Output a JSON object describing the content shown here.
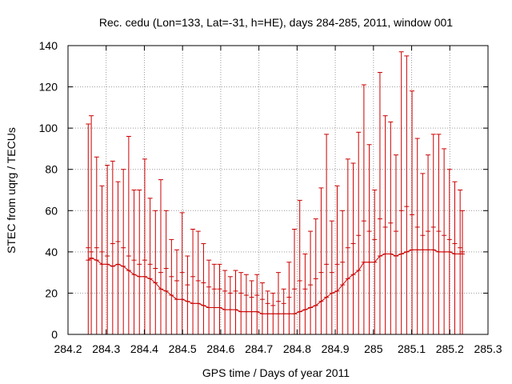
{
  "chart_data": {
    "type": "errorbar",
    "title": "Rec. cedu (Lon=133, Lat=-31, h=HE), days 284-285, 2011, window 001",
    "xlabel": "GPS time / Days of year 2011",
    "ylabel": "STEC from uqrg / TECUs",
    "xlim": [
      284.2,
      285.3
    ],
    "ylim": [
      0,
      140
    ],
    "xticks": [
      284.2,
      284.3,
      284.4,
      284.5,
      284.6,
      284.7,
      284.8,
      284.9,
      285,
      285.1,
      285.2,
      285.3
    ],
    "xtick_labels": [
      "284.2",
      "284.3",
      "284.4",
      "284.5",
      "284.6",
      "284.7",
      "284.8",
      "284.9",
      "285",
      "285.1",
      "285.2",
      "285.3"
    ],
    "yticks": [
      0,
      20,
      40,
      60,
      80,
      100,
      120,
      140
    ],
    "ytick_labels": [
      "0",
      "20",
      "40",
      "60",
      "80",
      "100",
      "120",
      "140"
    ],
    "grid": true,
    "color": "#cc0000",
    "series": [
      {
        "name": "STEC",
        "x": [
          284.253,
          284.261,
          284.275,
          284.289,
          284.303,
          284.317,
          284.331,
          284.345,
          284.359,
          284.373,
          284.387,
          284.401,
          284.415,
          284.429,
          284.443,
          284.457,
          284.471,
          284.485,
          284.499,
          284.513,
          284.527,
          284.541,
          284.555,
          284.569,
          284.583,
          284.597,
          284.611,
          284.625,
          284.639,
          284.653,
          284.667,
          284.681,
          284.695,
          284.709,
          284.723,
          284.737,
          284.751,
          284.765,
          284.779,
          284.793,
          284.807,
          284.821,
          284.835,
          284.849,
          284.863,
          284.877,
          284.891,
          284.905,
          284.919,
          284.933,
          284.947,
          284.961,
          284.975,
          284.989,
          285.003,
          285.017,
          285.031,
          285.045,
          285.059,
          285.073,
          285.087,
          285.101,
          285.115,
          285.129,
          285.143,
          285.157,
          285.171,
          285.185,
          285.199,
          285.213,
          285.227,
          285.233
        ],
        "upper": [
          102,
          106,
          86,
          72,
          82,
          84,
          74,
          80,
          96,
          70,
          70,
          85,
          66,
          60,
          75,
          60,
          46,
          41,
          59,
          38,
          51,
          50,
          44,
          36,
          34,
          34,
          31,
          28,
          31,
          30,
          29,
          26,
          29,
          25,
          21,
          20,
          30,
          22,
          35,
          51,
          65,
          39,
          50,
          56,
          71,
          97,
          55,
          72,
          60,
          85,
          83,
          98,
          121,
          92,
          70,
          127,
          106,
          103,
          87,
          137,
          135,
          118,
          95,
          78,
          87,
          97,
          97,
          90,
          80,
          74,
          70,
          60
        ],
        "middle": [
          42,
          40,
          42,
          40,
          38,
          44,
          45,
          42,
          38,
          36,
          34,
          36,
          34,
          32,
          30,
          32,
          28,
          26,
          30,
          24,
          28,
          26,
          25,
          23,
          22,
          22,
          21,
          20,
          21,
          20,
          19,
          18,
          19,
          17,
          15,
          14,
          16,
          15,
          18,
          22,
          26,
          22,
          24,
          27,
          30,
          34,
          30,
          34,
          35,
          42,
          44,
          48,
          55,
          50,
          46,
          56,
          52,
          54,
          50,
          60,
          62,
          58,
          52,
          48,
          50,
          52,
          50,
          48,
          46,
          44,
          42,
          40
        ],
        "lower": [
          36,
          37,
          36,
          34,
          34,
          33,
          34,
          33,
          31,
          29,
          28,
          28,
          27,
          25,
          22,
          21,
          19,
          17,
          17,
          16,
          15,
          15,
          14,
          13,
          13,
          13,
          12,
          12,
          12,
          11,
          11,
          11,
          11,
          10,
          10,
          10,
          10,
          10,
          10,
          10,
          11,
          12,
          13,
          14,
          16,
          18,
          20,
          21,
          24,
          27,
          29,
          31,
          35,
          35,
          35,
          38,
          39,
          39,
          38,
          39,
          40,
          41,
          41,
          41,
          41,
          41,
          40,
          40,
          40,
          39,
          39,
          39
        ]
      }
    ]
  }
}
